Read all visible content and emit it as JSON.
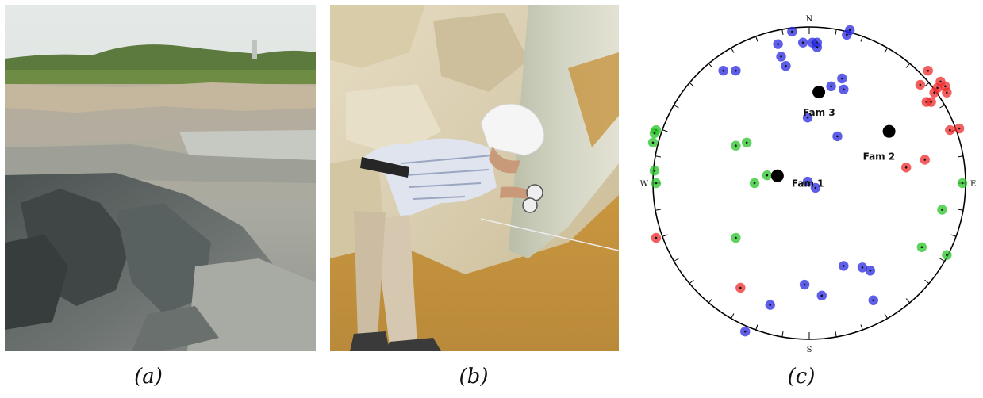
{
  "figure": {
    "panels": [
      {
        "id": "a",
        "caption": "(a)"
      },
      {
        "id": "b",
        "caption": "(b)"
      },
      {
        "id": "c",
        "caption": "(c)"
      }
    ],
    "stereonet": {
      "directions": {
        "north": "N",
        "south": "S",
        "east": "E",
        "west": "W"
      },
      "families": [
        {
          "label": "Fam 1",
          "trend": 283,
          "plunge": 73
        },
        {
          "label": "Fam 2",
          "trend": 57,
          "plunge": 39
        },
        {
          "label": "Fam 3",
          "trend": 6,
          "plunge": 41
        }
      ],
      "colors": {
        "fam1": "#27c427",
        "fam2": "#ef2a2a",
        "fam3": "#2828e0",
        "mean": "#000000",
        "outline": "#000000"
      }
    }
  }
}
